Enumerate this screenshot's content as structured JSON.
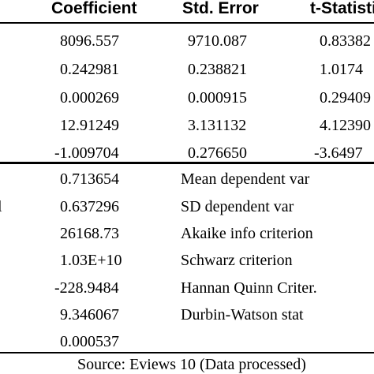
{
  "table": {
    "headers": [
      "Coefficient",
      "Std. Error",
      "t-Statistic"
    ],
    "coef_rows": [
      {
        "coefficient": "8096.557",
        "std_error": "9710.087",
        "t_stat": "0.83382"
      },
      {
        "coefficient": "0.242981",
        "std_error": "0.238821",
        "t_stat": "1.0174"
      },
      {
        "coefficient": "0.000269",
        "std_error": "0.000915",
        "t_stat": "0.29409"
      },
      {
        "coefficient": "12.91249",
        "std_error": "3.131132",
        "t_stat": "4.12390"
      },
      {
        "coefficient": "-1.009704",
        "std_error": "0.276650",
        "t_stat": "-3.6497"
      }
    ],
    "stat_rows": [
      {
        "row_mark": "",
        "value": "0.713654",
        "label": "Mean dependent var"
      },
      {
        "row_mark": "l",
        "value": "0.637296",
        "label": "SD dependent var"
      },
      {
        "row_mark": "",
        "value": "26168.73",
        "label": "Akaike info criterion"
      },
      {
        "row_mark": "",
        "value": "1.03E+10",
        "label": "Schwarz criterion"
      },
      {
        "row_mark": "",
        "value": "-228.9484",
        "label": "Hannan Quinn Criter."
      },
      {
        "row_mark": "",
        "value": "9.346067",
        "label": "Durbin-Watson stat"
      },
      {
        "row_mark": "",
        "value": "0.000537",
        "label": ""
      }
    ],
    "source": "Source: Eviews 10 (Data processed)"
  }
}
